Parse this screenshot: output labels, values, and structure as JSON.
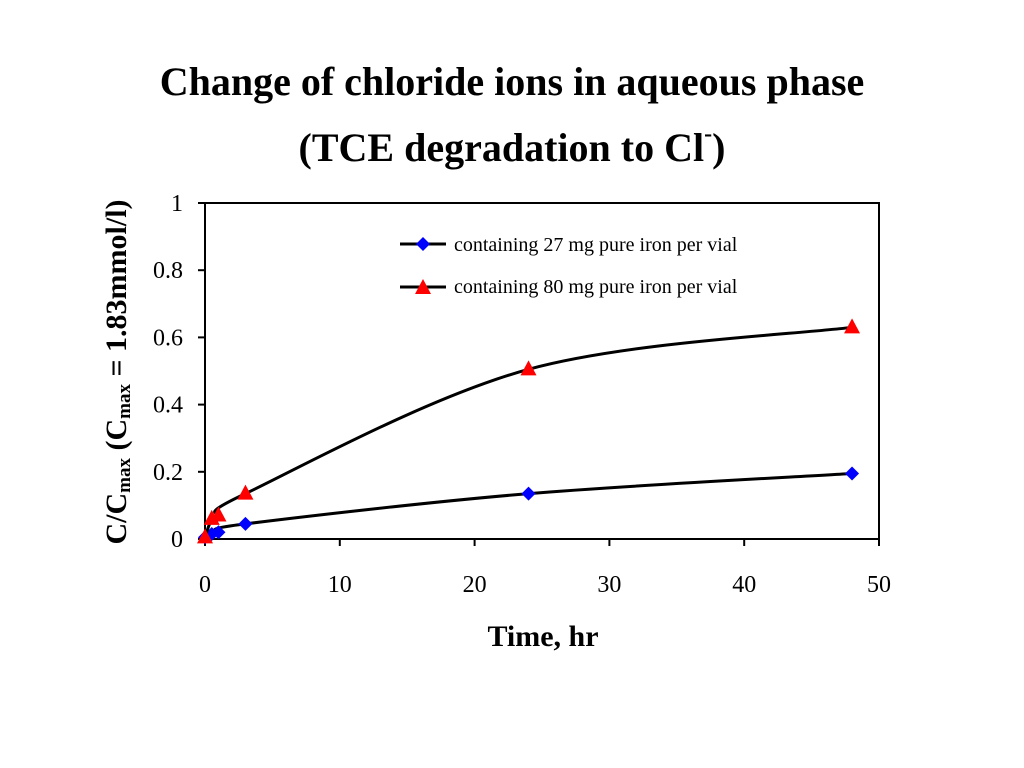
{
  "title": {
    "line1": "Change of chloride ions in aqueous phase",
    "line2_prefix": "(TCE degradation to Cl",
    "line2_sup": "-",
    "line2_suffix": ")"
  },
  "chart_data": {
    "type": "line",
    "xlabel": "Time, hr",
    "ylabel": {
      "part1": "C/C",
      "part1_sub": "max",
      "part2": " (C",
      "part2_sub": "max",
      "part3": " = 1.83mmol/l)"
    },
    "xlim": [
      0,
      50
    ],
    "ylim": [
      0,
      1
    ],
    "x_ticks": [
      "0",
      "10",
      "20",
      "30",
      "40",
      "50"
    ],
    "y_ticks": [
      "0",
      "0.2",
      "0.4",
      "0.6",
      "0.8",
      "1"
    ],
    "grid": false,
    "legend_position": "top-right",
    "series": [
      {
        "name": "containing 27 mg pure iron per vial",
        "marker": "diamond",
        "marker_color": "#0000ff",
        "x": [
          0,
          0.5,
          1,
          3,
          24,
          48
        ],
        "y": [
          0.005,
          0.015,
          0.02,
          0.045,
          0.135,
          0.195
        ]
      },
      {
        "name": "containing 80 mg pure iron per vial",
        "marker": "triangle",
        "marker_color": "#ff0000",
        "x": [
          0,
          0.5,
          1,
          3,
          24,
          48
        ],
        "y": [
          0.005,
          0.06,
          0.07,
          0.135,
          0.505,
          0.63
        ]
      }
    ]
  }
}
